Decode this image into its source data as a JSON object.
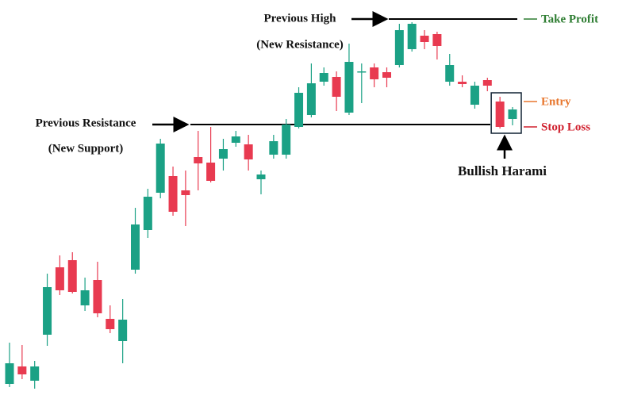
{
  "chart_data": {
    "type": "candlestick",
    "ylim": [
      0,
      498
    ],
    "up_color": "#1ba185",
    "down_color": "#e83a50",
    "open": [
      14,
      36,
      18,
      76,
      161,
      170,
      113,
      145,
      96,
      68,
      158,
      208,
      255,
      276,
      258,
      300,
      293,
      298,
      318,
      316,
      272,
      303,
      303,
      338,
      353,
      395,
      401,
      356,
      407,
      413,
      407,
      416,
      436,
      453,
      455,
      395,
      395,
      366,
      397,
      370,
      348
    ],
    "high": [
      66,
      63,
      43,
      153,
      176,
      180,
      148,
      168,
      113,
      121,
      236,
      260,
      323,
      288,
      283,
      333,
      338,
      323,
      333,
      328,
      283,
      328,
      348,
      388,
      418,
      413,
      408,
      443,
      418,
      418,
      413,
      468,
      470,
      460,
      458,
      430,
      403,
      395,
      400,
      376,
      363
    ],
    "low": [
      10,
      20,
      8,
      62,
      126,
      128,
      106,
      98,
      78,
      40,
      153,
      198,
      248,
      226,
      213,
      258,
      268,
      283,
      313,
      283,
      253,
      298,
      298,
      336,
      350,
      390,
      358,
      353,
      368,
      388,
      388,
      413,
      433,
      436,
      423,
      390,
      388,
      361,
      383,
      336,
      340
    ],
    "close": [
      40,
      26,
      36,
      136,
      132,
      130,
      132,
      103,
      83,
      95,
      215,
      250,
      317,
      231,
      252,
      292,
      270,
      310,
      326,
      297,
      278,
      320,
      341,
      381,
      393,
      406,
      376,
      420,
      408,
      398,
      400,
      460,
      468,
      445,
      440,
      416,
      392,
      390,
      390,
      338,
      360
    ],
    "levels": [
      {
        "label": "Previous High",
        "sublabel": "(New Resistance)",
        "value": 474
      },
      {
        "label": "Previous Resistance",
        "sublabel": "(New Support)",
        "value": 341
      }
    ],
    "targets": [
      {
        "name": "Take Profit",
        "value": 474,
        "color": "#2e7d32"
      },
      {
        "name": "Entry",
        "value": 370,
        "color": "#e8772e"
      },
      {
        "name": "Stop Loss",
        "value": 338,
        "color": "#d0202e"
      }
    ],
    "pattern_label": "Bullish Harami"
  }
}
